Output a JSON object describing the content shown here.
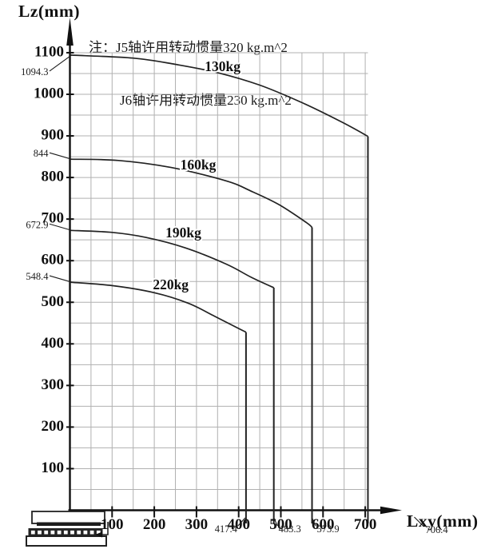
{
  "page": {
    "background": "#ffffff"
  },
  "note": {
    "line1": "注：J5轴许用转动惯量320 kg.m^2",
    "line2": "J6轴许用转动惯量230 kg.m^2"
  },
  "chart_data": {
    "type": "line",
    "title": "",
    "xlabel": "Lxy(mm)",
    "ylabel": "Lz(mm)",
    "xlim": [
      0,
      706.4
    ],
    "ylim": [
      0,
      1100
    ],
    "grid": true,
    "grid_step_mm": 50,
    "x_ticks": [
      100,
      200,
      300,
      400,
      500,
      600,
      700
    ],
    "y_ticks": [
      1100,
      1000,
      900,
      800,
      700,
      600,
      500,
      400,
      300,
      200,
      100
    ],
    "legend_position": "labels-on-curves",
    "colors": {
      "curve": "#222222",
      "axis": "#111111",
      "grid": "#b0b0b0",
      "text": "#111111"
    },
    "series": [
      {
        "label": "130kg",
        "max_lz_at_0": 1094.3,
        "max_lxy": 706.4,
        "lz_at_max_lxy": 899,
        "points": [
          [
            0,
            1094.3
          ],
          [
            150,
            1087
          ],
          [
            250,
            1072
          ],
          [
            350,
            1052
          ],
          [
            450,
            1022
          ],
          [
            550,
            980
          ],
          [
            645,
            933
          ],
          [
            706.4,
            899
          ]
        ],
        "label_at": [
          362,
          1067
        ]
      },
      {
        "label": "160kg",
        "max_lz_at_0": 844,
        "max_lxy": 573.9,
        "lz_at_max_lxy": 680,
        "points": [
          [
            0,
            844
          ],
          [
            115,
            841
          ],
          [
            240,
            824
          ],
          [
            370,
            792
          ],
          [
            430,
            767
          ],
          [
            495,
            735
          ],
          [
            560,
            692
          ],
          [
            573.9,
            680
          ]
        ],
        "label_at": [
          304,
          831
        ]
      },
      {
        "label": "190kg",
        "max_lz_at_0": 672.9,
        "max_lxy": 483.3,
        "lz_at_max_lxy": 535,
        "points": [
          [
            0,
            672.9
          ],
          [
            100,
            668
          ],
          [
            180,
            656
          ],
          [
            273,
            631
          ],
          [
            370,
            592
          ],
          [
            430,
            560
          ],
          [
            483.3,
            535
          ]
        ],
        "label_at": [
          269,
          668
        ]
      },
      {
        "label": "220kg",
        "max_lz_at_0": 548.4,
        "max_lxy": 417.4,
        "lz_at_max_lxy": 428,
        "points": [
          [
            0,
            548.4
          ],
          [
            100,
            540
          ],
          [
            200,
            523
          ],
          [
            280,
            498
          ],
          [
            340,
            468
          ],
          [
            390,
            442
          ],
          [
            417.4,
            428
          ]
        ],
        "label_at": [
          239,
          543
        ]
      }
    ],
    "left_annotations": [
      {
        "text": "1094.3",
        "value": 1094.3
      },
      {
        "text": "844",
        "value": 844
      },
      {
        "text": "672.9",
        "value": 672.9
      },
      {
        "text": "548.4",
        "value": 548.4
      }
    ],
    "bottom_annotations": [
      {
        "text": "417.4",
        "value": 417.4,
        "side": "left"
      },
      {
        "text": "483.3",
        "value": 483.3,
        "side": "right"
      },
      {
        "text": "573.9",
        "value": 573.9,
        "side": "right"
      },
      {
        "text": "706.4",
        "value": 706.4,
        "side": "right",
        "offset": 72
      }
    ]
  }
}
